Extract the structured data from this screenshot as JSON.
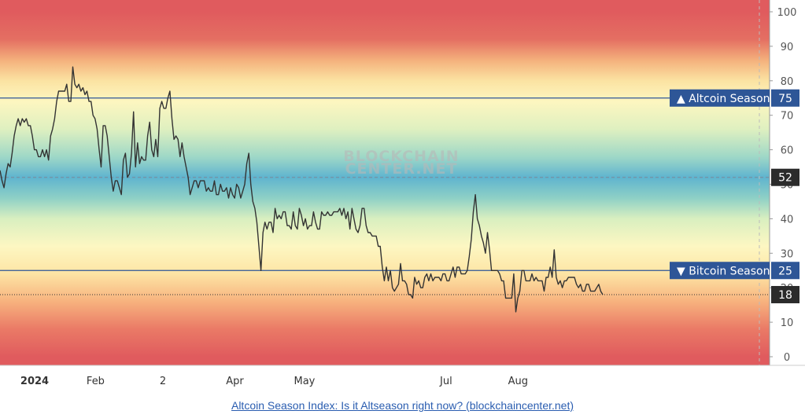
{
  "chart_data": {
    "type": "line",
    "ylim": [
      0,
      100
    ],
    "y_ticks": [
      0,
      10,
      20,
      30,
      40,
      50,
      60,
      70,
      80,
      90,
      100
    ],
    "x_tick_labels": [
      {
        "label": "2024",
        "day": 0,
        "bold": true
      },
      {
        "label": "Feb",
        "day": 31
      },
      {
        "label": "2",
        "day": 60
      },
      {
        "label": "Apr",
        "day": 91
      },
      {
        "label": "May",
        "day": 121
      },
      {
        "label": "Jul",
        "day": 182
      },
      {
        "label": "Aug",
        "day": 213
      }
    ],
    "series": [
      {
        "values": [
          54,
          51,
          49,
          53,
          56,
          55,
          59,
          64,
          67,
          69,
          67,
          69,
          68,
          69,
          67,
          67,
          64,
          60,
          60,
          58,
          58,
          60,
          58,
          60,
          57,
          64,
          66,
          69,
          74,
          77,
          77,
          77,
          77,
          79,
          74,
          74,
          84,
          79,
          78,
          79,
          77,
          78,
          76,
          77,
          74,
          74,
          70,
          69,
          66,
          60,
          55,
          67,
          67,
          64,
          58,
          52,
          48,
          51,
          51,
          49,
          47,
          57,
          59,
          52,
          53,
          59,
          71,
          55,
          62,
          56,
          58,
          57,
          57,
          64,
          68,
          60,
          58,
          63,
          58,
          72,
          74,
          72,
          72,
          75,
          77,
          69,
          63,
          64,
          63,
          58,
          62,
          58,
          55,
          52,
          47,
          49,
          51,
          51,
          49,
          51,
          51,
          51,
          48,
          49,
          48,
          48,
          51,
          47,
          47,
          50,
          48,
          48,
          49,
          46,
          49,
          47,
          46,
          50,
          49,
          46,
          48,
          50,
          56,
          59,
          50,
          45,
          43,
          39,
          32,
          25,
          36,
          39,
          37,
          39,
          39,
          36,
          43,
          40,
          41,
          40,
          42,
          42,
          38,
          38,
          37,
          42,
          38,
          37,
          43,
          41,
          38,
          40,
          37,
          38,
          38,
          42,
          39,
          37,
          37,
          42,
          41,
          41,
          42,
          41,
          41,
          42,
          42,
          42,
          43,
          41,
          43,
          40,
          42,
          37,
          43,
          40,
          37,
          36,
          38,
          43,
          43,
          38,
          36,
          36,
          35,
          35,
          35,
          32,
          32,
          26,
          22,
          26,
          22,
          25,
          20,
          19,
          20,
          21,
          27,
          22,
          22,
          21,
          18,
          18,
          17,
          23,
          21,
          22,
          20,
          20,
          23,
          24,
          22,
          24,
          22,
          23,
          23,
          23,
          22,
          24,
          24,
          22,
          22,
          24,
          26,
          23,
          26,
          26,
          24,
          24,
          24,
          25,
          29,
          34,
          42,
          47,
          40,
          38,
          35,
          33,
          30,
          36,
          31,
          25,
          25,
          25,
          25,
          24,
          22,
          22,
          17,
          17,
          17,
          17,
          24,
          13,
          17,
          19,
          25,
          25,
          22,
          22,
          22,
          24,
          22,
          23,
          22,
          22,
          22,
          19,
          23,
          23,
          26,
          23,
          31,
          23,
          21,
          22,
          20,
          22,
          22,
          23,
          23,
          23,
          23,
          21,
          20,
          21,
          19,
          19,
          21,
          21,
          19,
          19,
          19,
          20,
          21,
          19,
          18
        ]
      }
    ],
    "reference_lines": [
      {
        "label": "▲ Altcoin Season",
        "value": 75
      },
      {
        "label": "▼ Bitcoin Season",
        "value": 25
      }
    ],
    "current_value": 18,
    "crosshair_value": 52,
    "grid": false
  },
  "watermark": {
    "line1": "BLOCKCHAIN",
    "line2": "CENTER.NET"
  },
  "footer": {
    "link_text": "Altcoin Season Index: Is it Altseason right now? (blockchaincenter.net)"
  },
  "colors": {
    "line": "#333333",
    "label_bg": "#2e5697",
    "value_bg": "#2b2b2b",
    "guide": "#2e5697"
  }
}
